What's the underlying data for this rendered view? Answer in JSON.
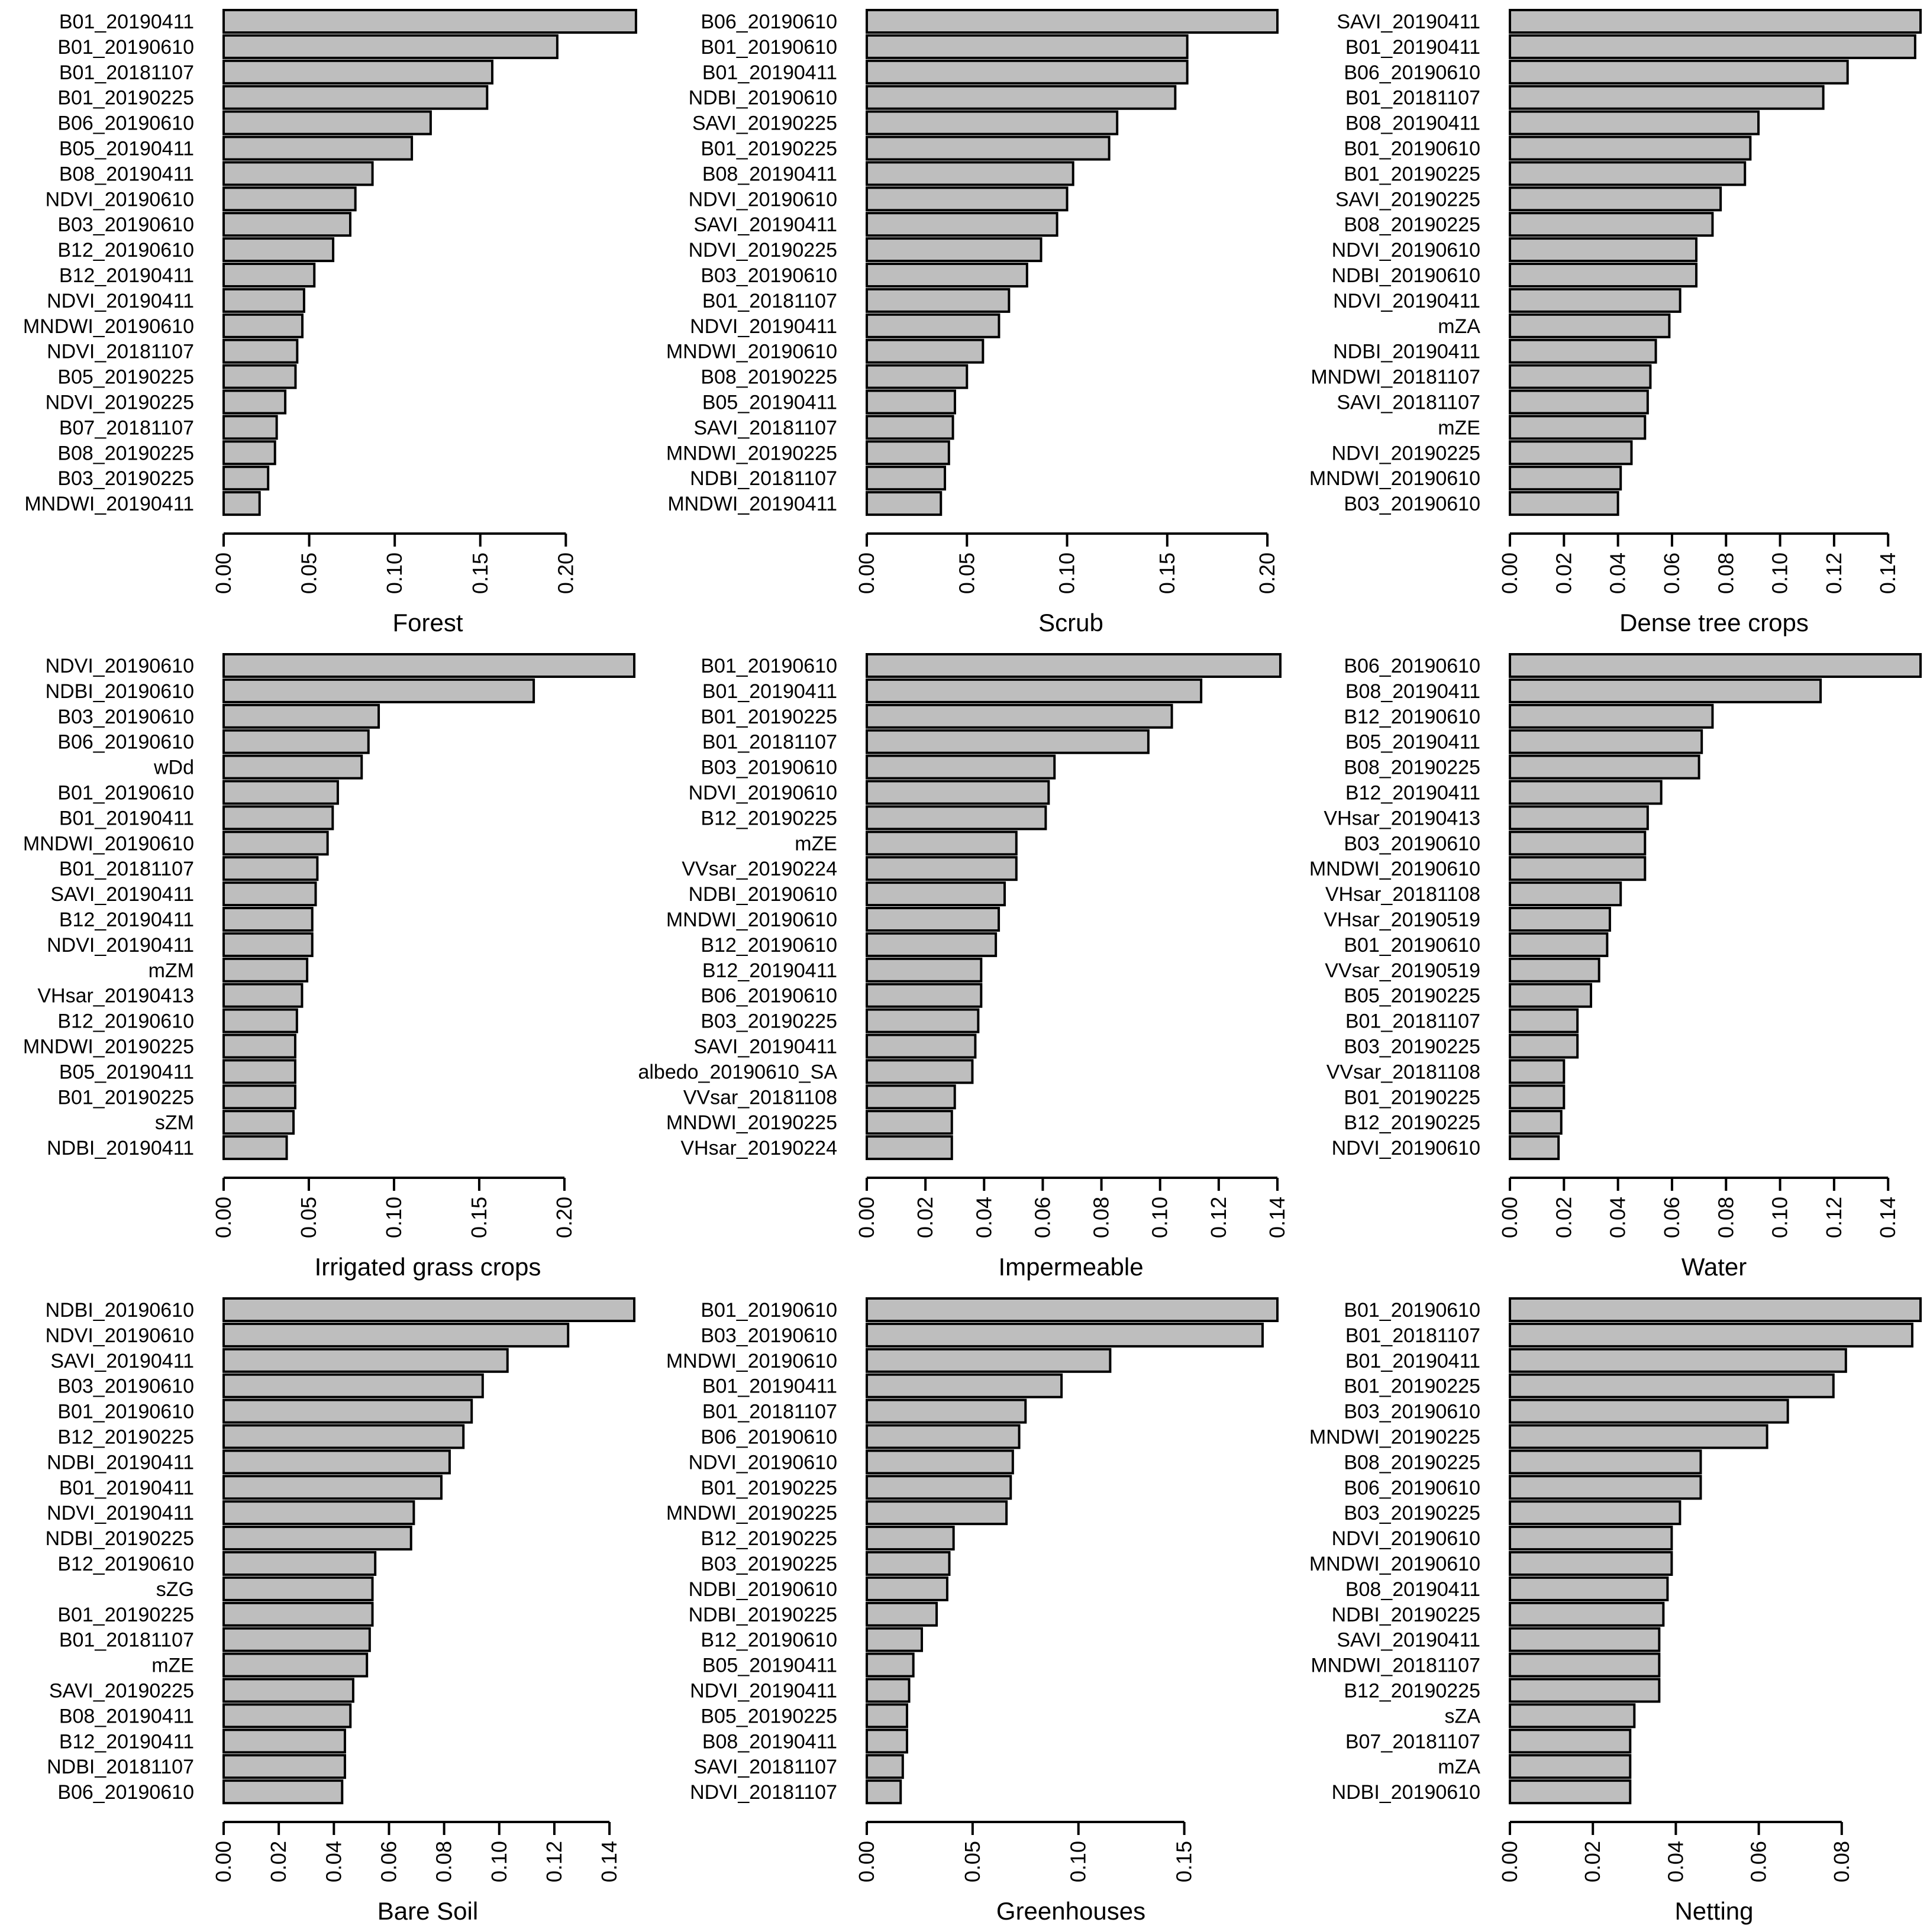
{
  "chart_data": [
    {
      "type": "bar",
      "orientation": "horizontal",
      "xlabel": "Forest",
      "xticks": [
        "0.00",
        "0.05",
        "0.10",
        "0.15",
        "0.20"
      ],
      "xlim": [
        0,
        0.24
      ],
      "categories": [
        "B01_20190411",
        "B01_20190610",
        "B01_20181107",
        "B01_20190225",
        "B06_20190610",
        "B05_20190411",
        "B08_20190411",
        "NDVI_20190610",
        "B03_20190610",
        "B12_20190610",
        "B12_20190411",
        "NDVI_20190411",
        "MNDWI_20190610",
        "NDVI_20181107",
        "B05_20190225",
        "NDVI_20190225",
        "B07_20181107",
        "B08_20190225",
        "B03_20190225",
        "MNDWI_20190411"
      ],
      "values": [
        0.241,
        0.195,
        0.157,
        0.154,
        0.121,
        0.11,
        0.087,
        0.077,
        0.074,
        0.064,
        0.053,
        0.047,
        0.046,
        0.043,
        0.042,
        0.036,
        0.031,
        0.03,
        0.026,
        0.021
      ]
    },
    {
      "type": "bar",
      "orientation": "horizontal",
      "xlabel": "Scrub",
      "xticks": [
        "0.00",
        "0.05",
        "0.10",
        "0.15",
        "0.20"
      ],
      "xlim": [
        0,
        0.205
      ],
      "categories": [
        "B06_20190610",
        "B01_20190610",
        "B01_20190411",
        "NDBI_20190610",
        "SAVI_20190225",
        "B01_20190225",
        "B08_20190411",
        "NDVI_20190610",
        "SAVI_20190411",
        "NDVI_20190225",
        "B03_20190610",
        "B01_20181107",
        "NDVI_20190411",
        "MNDWI_20190610",
        "B08_20190225",
        "B05_20190411",
        "SAVI_20181107",
        "MNDWI_20190225",
        "NDBI_20181107",
        "MNDWI_20190411"
      ],
      "values": [
        0.205,
        0.16,
        0.16,
        0.154,
        0.125,
        0.121,
        0.103,
        0.1,
        0.095,
        0.087,
        0.08,
        0.071,
        0.066,
        0.058,
        0.05,
        0.044,
        0.043,
        0.041,
        0.039,
        0.037
      ]
    },
    {
      "type": "bar",
      "orientation": "horizontal",
      "xlabel": "Dense tree crops",
      "xticks": [
        "0.00",
        "0.02",
        "0.04",
        "0.06",
        "0.08",
        "0.10",
        "0.12",
        "0.14"
      ],
      "xlim": [
        0,
        0.152
      ],
      "categories": [
        "SAVI_20190411",
        "B01_20190411",
        "B06_20190610",
        "B01_20181107",
        "B08_20190411",
        "B01_20190610",
        "B01_20190225",
        "SAVI_20190225",
        "B08_20190225",
        "NDVI_20190610",
        "NDBI_20190610",
        "NDVI_20190411",
        "mZA",
        "NDBI_20190411",
        "MNDWI_20181107",
        "SAVI_20181107",
        "mZE",
        "NDVI_20190225",
        "MNDWI_20190610",
        "B03_20190610"
      ],
      "values": [
        0.152,
        0.15,
        0.125,
        0.116,
        0.092,
        0.089,
        0.087,
        0.078,
        0.075,
        0.069,
        0.069,
        0.063,
        0.059,
        0.054,
        0.052,
        0.051,
        0.05,
        0.045,
        0.041,
        0.04
      ]
    },
    {
      "type": "bar",
      "orientation": "horizontal",
      "xlabel": "Irrigated grass crops",
      "xticks": [
        "0.00",
        "0.05",
        "0.10",
        "0.15",
        "0.20"
      ],
      "xlim": [
        0,
        0.241
      ],
      "categories": [
        "NDVI_20190610",
        "NDBI_20190610",
        "B03_20190610",
        "B06_20190610",
        "wDd",
        "B01_20190610",
        "B01_20190411",
        "MNDWI_20190610",
        "B01_20181107",
        "SAVI_20190411",
        "B12_20190411",
        "NDVI_20190411",
        "mZM",
        "VHsar_20190413",
        "B12_20190610",
        "MNDWI_20190225",
        "B05_20190411",
        "B01_20190225",
        "sZM",
        "NDBI_20190411"
      ],
      "values": [
        0.241,
        0.182,
        0.091,
        0.085,
        0.081,
        0.067,
        0.064,
        0.061,
        0.055,
        0.054,
        0.052,
        0.052,
        0.049,
        0.046,
        0.043,
        0.042,
        0.042,
        0.042,
        0.041,
        0.037
      ]
    },
    {
      "type": "bar",
      "orientation": "horizontal",
      "xlabel": "Impermeable",
      "xticks": [
        "0.00",
        "0.02",
        "0.04",
        "0.06",
        "0.08",
        "0.10",
        "0.12",
        "0.14"
      ],
      "xlim": [
        0,
        0.14
      ],
      "categories": [
        "B01_20190610",
        "B01_20190411",
        "B01_20190225",
        "B01_20181107",
        "B03_20190610",
        "NDVI_20190610",
        "B12_20190225",
        "mZE",
        "VVsar_20190224",
        "NDBI_20190610",
        "MNDWI_20190610",
        "B12_20190610",
        "B12_20190411",
        "B06_20190610",
        "B03_20190225",
        "SAVI_20190411",
        "albedo_20190610_SA",
        "VVsar_20181108",
        "MNDWI_20190225",
        "VHsar_20190224"
      ],
      "values": [
        0.141,
        0.114,
        0.104,
        0.096,
        0.064,
        0.062,
        0.061,
        0.051,
        0.051,
        0.047,
        0.045,
        0.044,
        0.039,
        0.039,
        0.038,
        0.037,
        0.036,
        0.03,
        0.029,
        0.029
      ]
    },
    {
      "type": "bar",
      "orientation": "horizontal",
      "xlabel": "Water",
      "xticks": [
        "0.00",
        "0.02",
        "0.04",
        "0.06",
        "0.08",
        "0.10",
        "0.12",
        "0.14"
      ],
      "xlim": [
        0,
        0.152
      ],
      "categories": [
        "B06_20190610",
        "B08_20190411",
        "B12_20190610",
        "B05_20190411",
        "B08_20190225",
        "B12_20190411",
        "VHsar_20190413",
        "B03_20190610",
        "MNDWI_20190610",
        "VHsar_20181108",
        "VHsar_20190519",
        "B01_20190610",
        "VVsar_20190519",
        "B05_20190225",
        "B01_20181107",
        "B03_20190225",
        "VVsar_20181108",
        "B01_20190225",
        "B12_20190225",
        "NDVI_20190610"
      ],
      "values": [
        0.152,
        0.115,
        0.075,
        0.071,
        0.07,
        0.056,
        0.051,
        0.05,
        0.05,
        0.041,
        0.037,
        0.036,
        0.033,
        0.03,
        0.025,
        0.025,
        0.02,
        0.02,
        0.019,
        0.018
      ]
    },
    {
      "type": "bar",
      "orientation": "horizontal",
      "xlabel": "Bare Soil",
      "xticks": [
        "0.00",
        "0.02",
        "0.04",
        "0.06",
        "0.08",
        "0.10",
        "0.12",
        "0.14"
      ],
      "xlim": [
        0,
        0.149
      ],
      "categories": [
        "NDBI_20190610",
        "NDVI_20190610",
        "SAVI_20190411",
        "B03_20190610",
        "B01_20190610",
        "B12_20190225",
        "NDBI_20190411",
        "B01_20190411",
        "NDVI_20190411",
        "NDBI_20190225",
        "B12_20190610",
        "sZG",
        "B01_20190225",
        "B01_20181107",
        "mZE",
        "SAVI_20190225",
        "B08_20190411",
        "B12_20190411",
        "NDBI_20181107",
        "B06_20190610"
      ],
      "values": [
        0.149,
        0.125,
        0.103,
        0.094,
        0.09,
        0.087,
        0.082,
        0.079,
        0.069,
        0.068,
        0.055,
        0.054,
        0.054,
        0.053,
        0.052,
        0.047,
        0.046,
        0.044,
        0.044,
        0.043
      ]
    },
    {
      "type": "bar",
      "orientation": "horizontal",
      "xlabel": "Greenhouses",
      "xticks": [
        "0.00",
        "0.05",
        "0.10",
        "0.15"
      ],
      "xlim": [
        0,
        0.194
      ],
      "categories": [
        "B01_20190610",
        "B03_20190610",
        "MNDWI_20190610",
        "B01_20190411",
        "B01_20181107",
        "B06_20190610",
        "NDVI_20190610",
        "B01_20190225",
        "MNDWI_20190225",
        "B12_20190225",
        "B03_20190225",
        "NDBI_20190610",
        "NDBI_20190225",
        "B12_20190610",
        "B05_20190411",
        "NDVI_20190411",
        "B05_20190225",
        "B08_20190411",
        "SAVI_20181107",
        "NDVI_20181107"
      ],
      "values": [
        0.194,
        0.187,
        0.115,
        0.092,
        0.075,
        0.072,
        0.069,
        0.068,
        0.066,
        0.041,
        0.039,
        0.038,
        0.033,
        0.026,
        0.022,
        0.02,
        0.019,
        0.019,
        0.017,
        0.016
      ]
    },
    {
      "type": "bar",
      "orientation": "horizontal",
      "xlabel": "Netting",
      "xticks": [
        "0.00",
        "0.02",
        "0.04",
        "0.06",
        "0.08"
      ],
      "xlim": [
        0,
        0.099
      ],
      "categories": [
        "B01_20190610",
        "B01_20181107",
        "B01_20190411",
        "B01_20190225",
        "B03_20190610",
        "MNDWI_20190225",
        "B08_20190225",
        "B06_20190610",
        "B03_20190225",
        "NDVI_20190610",
        "MNDWI_20190610",
        "B08_20190411",
        "NDBI_20190225",
        "SAVI_20190411",
        "MNDWI_20181107",
        "B12_20190225",
        "sZA",
        "B07_20181107",
        "mZA",
        "NDBI_20190610"
      ],
      "values": [
        0.099,
        0.097,
        0.081,
        0.078,
        0.067,
        0.062,
        0.046,
        0.046,
        0.041,
        0.039,
        0.039,
        0.038,
        0.037,
        0.036,
        0.036,
        0.036,
        0.03,
        0.029,
        0.029,
        0.029
      ]
    }
  ]
}
